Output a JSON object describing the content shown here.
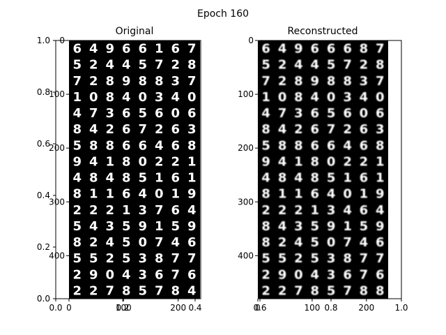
{
  "figure": {
    "suptitle": "Epoch 160"
  },
  "colors": {
    "background": "#ffffff",
    "image": "#000000",
    "digit": "#ffffff",
    "axis": "#000000"
  },
  "chart_data": [
    {
      "type": "image-grid",
      "title": "Original",
      "grid_rows": 16,
      "grid_cols": 8,
      "digits": [
        "64966167",
        "52445728",
        "72898837",
        "10840340",
        "47365606",
        "84267263",
        "58866468",
        "94180221",
        "48485161",
        "81164019",
        "22213764",
        "54359159",
        "82450746",
        "55253877",
        "29043676",
        "22785784"
      ],
      "outer_axis": {
        "xlim": [
          0.0,
          1.0
        ],
        "ylim": [
          0.0,
          1.0
        ],
        "xticks": [
          "0.0",
          "0.2",
          "0.4"
        ],
        "yticks": [
          "0.0",
          "0.2",
          "0.4",
          "0.6",
          "0.8",
          "1.0"
        ]
      },
      "image_axis": {
        "xlim": [
          0,
          240
        ],
        "ylim": [
          480,
          0
        ],
        "xticks": [
          0,
          100,
          200
        ],
        "yticks": [
          0,
          100,
          200,
          300,
          400
        ]
      }
    },
    {
      "type": "image-grid",
      "title": "Reconstructed",
      "grid_rows": 16,
      "grid_cols": 8,
      "digits": [
        "64966687",
        "52445728",
        "72898837",
        "10840340",
        "47365606",
        "84267263",
        "58866468",
        "94180221",
        "48485161",
        "81164019",
        "22213464",
        "84359159",
        "82450746",
        "55253877",
        "29043676",
        "22785788"
      ],
      "outer_axis": {
        "xlim": [
          0.0,
          1.0
        ],
        "ylim": [
          0.0,
          1.0
        ],
        "xticks": [
          "0.6",
          "0.8",
          "1.0"
        ],
        "yticks": []
      },
      "image_axis": {
        "xlim": [
          0,
          240
        ],
        "ylim": [
          480,
          0
        ],
        "xticks": [
          0,
          100,
          200
        ],
        "yticks": [
          0,
          100,
          200,
          300,
          400
        ]
      }
    }
  ]
}
